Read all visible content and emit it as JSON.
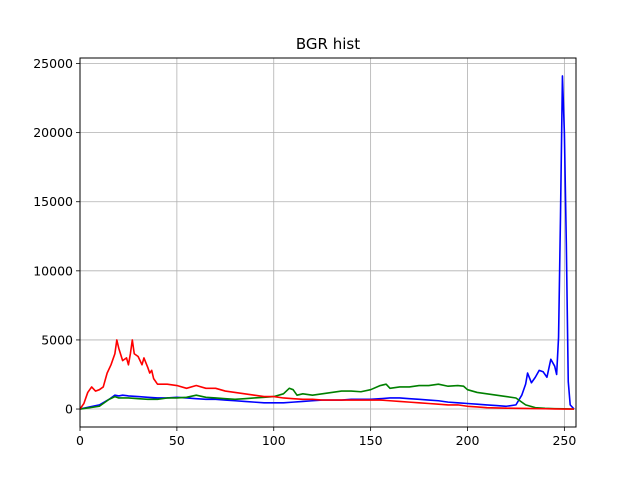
{
  "chart_data": {
    "type": "line",
    "title": "BGR hist",
    "xlabel": "",
    "ylabel": "",
    "xlim": [
      0,
      256
    ],
    "ylim": [
      -1300,
      25400
    ],
    "xticks": [
      0,
      50,
      100,
      150,
      200,
      250
    ],
    "yticks": [
      0,
      5000,
      10000,
      15000,
      20000,
      25000
    ],
    "xtick_labels": [
      "0",
      "50",
      "100",
      "150",
      "200",
      "250"
    ],
    "ytick_labels": [
      "0",
      "5000",
      "10000",
      "15000",
      "20000",
      "25000"
    ],
    "grid": true,
    "legend": "none",
    "series": [
      {
        "color": "#0000ff",
        "points": [
          [
            0,
            0
          ],
          [
            5,
            150
          ],
          [
            10,
            300
          ],
          [
            15,
            700
          ],
          [
            18,
            1000
          ],
          [
            20,
            950
          ],
          [
            22,
            1000
          ],
          [
            25,
            950
          ],
          [
            30,
            900
          ],
          [
            35,
            850
          ],
          [
            40,
            800
          ],
          [
            45,
            800
          ],
          [
            50,
            850
          ],
          [
            55,
            800
          ],
          [
            60,
            750
          ],
          [
            65,
            700
          ],
          [
            70,
            700
          ],
          [
            75,
            650
          ],
          [
            80,
            600
          ],
          [
            85,
            550
          ],
          [
            90,
            500
          ],
          [
            95,
            450
          ],
          [
            100,
            450
          ],
          [
            105,
            450
          ],
          [
            110,
            500
          ],
          [
            115,
            550
          ],
          [
            120,
            600
          ],
          [
            125,
            650
          ],
          [
            130,
            650
          ],
          [
            135,
            650
          ],
          [
            140,
            700
          ],
          [
            145,
            700
          ],
          [
            150,
            700
          ],
          [
            155,
            750
          ],
          [
            160,
            800
          ],
          [
            165,
            800
          ],
          [
            170,
            750
          ],
          [
            175,
            700
          ],
          [
            180,
            650
          ],
          [
            185,
            600
          ],
          [
            190,
            500
          ],
          [
            195,
            450
          ],
          [
            200,
            400
          ],
          [
            205,
            350
          ],
          [
            210,
            300
          ],
          [
            215,
            250
          ],
          [
            220,
            200
          ],
          [
            225,
            300
          ],
          [
            228,
            1000
          ],
          [
            230,
            1800
          ],
          [
            231,
            2600
          ],
          [
            233,
            1900
          ],
          [
            235,
            2300
          ],
          [
            237,
            2800
          ],
          [
            239,
            2700
          ],
          [
            241,
            2300
          ],
          [
            243,
            3600
          ],
          [
            245,
            3100
          ],
          [
            246,
            2500
          ],
          [
            247,
            5200
          ],
          [
            248,
            14000
          ],
          [
            249,
            24100
          ],
          [
            250,
            20000
          ],
          [
            251,
            12000
          ],
          [
            252,
            2000
          ],
          [
            253,
            300
          ],
          [
            255,
            0
          ]
        ]
      },
      {
        "color": "#008000",
        "points": [
          [
            0,
            0
          ],
          [
            5,
            100
          ],
          [
            10,
            200
          ],
          [
            15,
            700
          ],
          [
            18,
            900
          ],
          [
            20,
            800
          ],
          [
            25,
            800
          ],
          [
            30,
            750
          ],
          [
            35,
            700
          ],
          [
            40,
            700
          ],
          [
            45,
            800
          ],
          [
            50,
            800
          ],
          [
            55,
            850
          ],
          [
            60,
            1000
          ],
          [
            65,
            850
          ],
          [
            70,
            800
          ],
          [
            75,
            750
          ],
          [
            80,
            700
          ],
          [
            85,
            750
          ],
          [
            90,
            800
          ],
          [
            95,
            850
          ],
          [
            100,
            900
          ],
          [
            105,
            1100
          ],
          [
            108,
            1500
          ],
          [
            110,
            1400
          ],
          [
            112,
            1000
          ],
          [
            115,
            1100
          ],
          [
            120,
            1000
          ],
          [
            125,
            1100
          ],
          [
            130,
            1200
          ],
          [
            135,
            1300
          ],
          [
            140,
            1300
          ],
          [
            145,
            1250
          ],
          [
            150,
            1400
          ],
          [
            155,
            1700
          ],
          [
            158,
            1800
          ],
          [
            160,
            1500
          ],
          [
            165,
            1600
          ],
          [
            170,
            1600
          ],
          [
            175,
            1700
          ],
          [
            180,
            1700
          ],
          [
            185,
            1800
          ],
          [
            190,
            1650
          ],
          [
            195,
            1700
          ],
          [
            198,
            1650
          ],
          [
            200,
            1400
          ],
          [
            205,
            1200
          ],
          [
            210,
            1100
          ],
          [
            215,
            1000
          ],
          [
            220,
            900
          ],
          [
            225,
            800
          ],
          [
            228,
            500
          ],
          [
            230,
            300
          ],
          [
            235,
            100
          ],
          [
            240,
            50
          ],
          [
            245,
            30
          ],
          [
            250,
            20
          ],
          [
            255,
            0
          ]
        ]
      },
      {
        "color": "#ff0000",
        "points": [
          [
            0,
            0
          ],
          [
            2,
            400
          ],
          [
            4,
            1200
          ],
          [
            6,
            1600
          ],
          [
            8,
            1300
          ],
          [
            10,
            1400
          ],
          [
            12,
            1600
          ],
          [
            14,
            2600
          ],
          [
            16,
            3200
          ],
          [
            18,
            4000
          ],
          [
            19,
            5000
          ],
          [
            20,
            4400
          ],
          [
            22,
            3500
          ],
          [
            24,
            3700
          ],
          [
            25,
            3200
          ],
          [
            26,
            4000
          ],
          [
            27,
            5000
          ],
          [
            28,
            4000
          ],
          [
            30,
            3800
          ],
          [
            32,
            3200
          ],
          [
            33,
            3700
          ],
          [
            35,
            3000
          ],
          [
            36,
            2600
          ],
          [
            37,
            2800
          ],
          [
            38,
            2200
          ],
          [
            40,
            1800
          ],
          [
            45,
            1800
          ],
          [
            50,
            1700
          ],
          [
            55,
            1500
          ],
          [
            60,
            1700
          ],
          [
            65,
            1500
          ],
          [
            70,
            1500
          ],
          [
            75,
            1300
          ],
          [
            80,
            1200
          ],
          [
            85,
            1100
          ],
          [
            90,
            1000
          ],
          [
            95,
            900
          ],
          [
            100,
            900
          ],
          [
            105,
            800
          ],
          [
            110,
            750
          ],
          [
            115,
            700
          ],
          [
            120,
            700
          ],
          [
            125,
            650
          ],
          [
            130,
            650
          ],
          [
            135,
            650
          ],
          [
            140,
            650
          ],
          [
            145,
            650
          ],
          [
            150,
            650
          ],
          [
            155,
            650
          ],
          [
            160,
            600
          ],
          [
            165,
            550
          ],
          [
            170,
            500
          ],
          [
            175,
            450
          ],
          [
            180,
            400
          ],
          [
            185,
            350
          ],
          [
            190,
            300
          ],
          [
            195,
            300
          ],
          [
            200,
            200
          ],
          [
            205,
            150
          ],
          [
            210,
            100
          ],
          [
            215,
            80
          ],
          [
            220,
            60
          ],
          [
            225,
            50
          ],
          [
            230,
            40
          ],
          [
            235,
            30
          ],
          [
            240,
            20
          ],
          [
            245,
            10
          ],
          [
            250,
            0
          ],
          [
            255,
            0
          ]
        ]
      }
    ]
  }
}
